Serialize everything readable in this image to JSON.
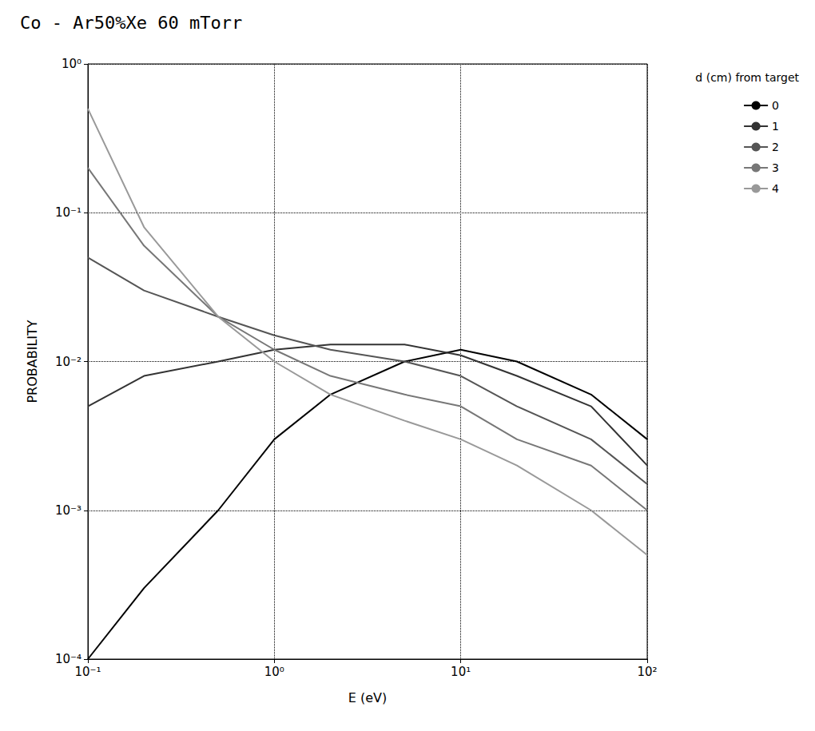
{
  "chart_data": {
    "type": "line",
    "title": "Co - Ar50%Xe 60 mTorr",
    "xlabel": "E (eV)",
    "ylabel": "PROBABILITY",
    "series_label": "d (cm) from target",
    "log": true,
    "grid": true,
    "legend": "right",
    "line_style": "solid",
    "x": [
      0.1,
      0.2,
      0.5,
      1,
      2,
      5,
      10,
      20,
      50,
      100
    ],
    "xlim": [
      0.1,
      100
    ],
    "xticks": [
      {
        "value": 0.1,
        "label": "10⁻¹"
      },
      {
        "value": 1,
        "label": "10⁰"
      },
      {
        "value": 10,
        "label": "10¹"
      },
      {
        "value": 100,
        "label": "10²"
      }
    ],
    "ylim": [
      0.0001,
      1
    ],
    "yticks": [
      {
        "value": 0.0001,
        "label": "10⁻⁴"
      },
      {
        "value": 0.001,
        "label": "10⁻³"
      },
      {
        "value": 0.01,
        "label": "10⁻²"
      },
      {
        "value": 0.1,
        "label": "10⁻¹"
      },
      {
        "value": 1,
        "label": "10⁰"
      }
    ],
    "series": [
      {
        "d": 0,
        "color": "#000000",
        "values": [
          0.0001,
          0.0003,
          0.001,
          0.003,
          0.006,
          0.01,
          0.012,
          0.01,
          0.006,
          0.003
        ]
      },
      {
        "d": 1,
        "color": "#333333",
        "values": [
          0.005,
          0.008,
          0.01,
          0.012,
          0.013,
          0.013,
          0.011,
          0.008,
          0.005,
          0.002
        ]
      },
      {
        "d": 2,
        "color": "#555555",
        "values": [
          0.05,
          0.03,
          0.02,
          0.015,
          0.012,
          0.01,
          0.008,
          0.005,
          0.003,
          0.0015
        ]
      },
      {
        "d": 3,
        "color": "#777777",
        "values": [
          0.2,
          0.06,
          0.02,
          0.012,
          0.008,
          0.006,
          0.005,
          0.003,
          0.002,
          0.001
        ]
      },
      {
        "d": 4,
        "color": "#999999",
        "values": [
          0.5,
          0.08,
          0.02,
          0.01,
          0.006,
          0.004,
          0.003,
          0.002,
          0.001,
          0.0005
        ]
      }
    ]
  }
}
